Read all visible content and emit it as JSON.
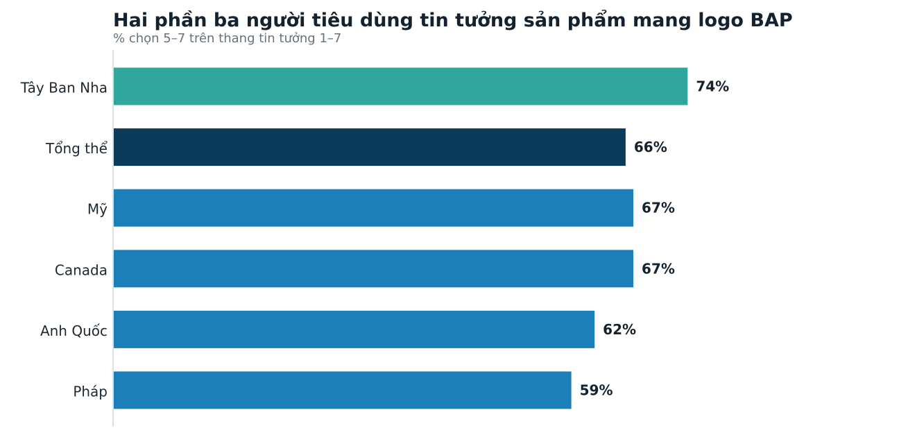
{
  "chart_data": {
    "type": "bar",
    "orientation": "horizontal",
    "title": "Hai phần ba người tiêu dùng tin tưởng sản phẩm mang logo BAP",
    "subtitle": "% chọn 5–7 trên thang tin tưởng 1–7",
    "xlabel": "",
    "ylabel": "",
    "xlim": [
      0,
      100
    ],
    "grid": false,
    "legend": "none",
    "value_suffix": "%",
    "categories": [
      "Tây Ban Nha",
      "Tổng thể",
      "Mỹ",
      "Canada",
      "Anh Quốc",
      "Pháp"
    ],
    "values": [
      74,
      66,
      67,
      67,
      62,
      59
    ],
    "value_labels": [
      "74%",
      "66%",
      "67%",
      "67%",
      "62%",
      "59%"
    ],
    "bar_colors": [
      "#2fa79d",
      "#0b3a5c",
      "#1c7fba",
      "#1c7fba",
      "#1c7fba",
      "#1c7fba"
    ]
  },
  "colors": {
    "highlight": "#2fa79d",
    "overall": "#0b3a5c",
    "default": "#1c7fba",
    "axis": "#d0d5d9",
    "title": "#13222e",
    "subtitle": "#66727c"
  }
}
